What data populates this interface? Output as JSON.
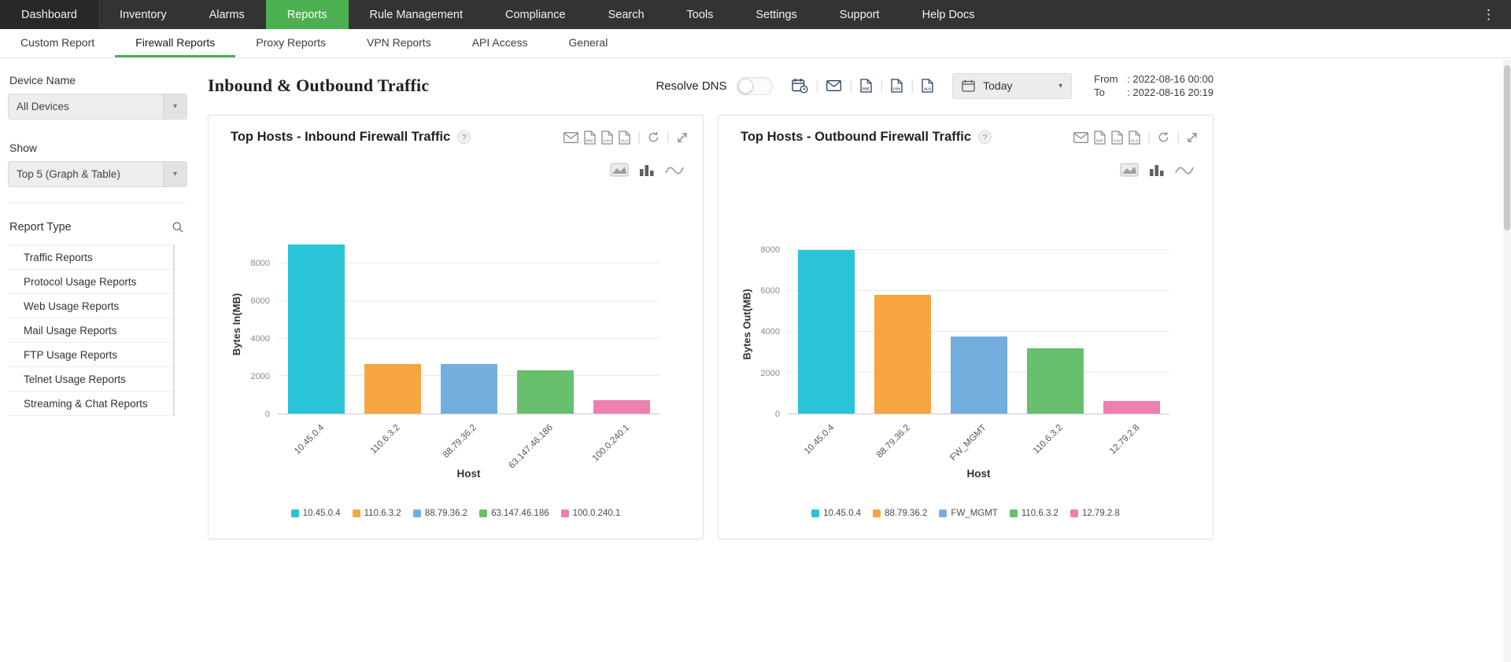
{
  "topnav": {
    "items": [
      {
        "label": "Dashboard"
      },
      {
        "label": "Inventory"
      },
      {
        "label": "Alarms"
      },
      {
        "label": "Reports",
        "active": true
      },
      {
        "label": "Rule Management"
      },
      {
        "label": "Compliance"
      },
      {
        "label": "Search"
      },
      {
        "label": "Tools"
      },
      {
        "label": "Settings"
      },
      {
        "label": "Support"
      },
      {
        "label": "Help Docs"
      }
    ]
  },
  "subnav": {
    "items": [
      {
        "label": "Custom Report"
      },
      {
        "label": "Firewall Reports",
        "active": true
      },
      {
        "label": "Proxy Reports"
      },
      {
        "label": "VPN Reports"
      },
      {
        "label": "API Access"
      },
      {
        "label": "General"
      }
    ]
  },
  "sidebar": {
    "device_name_label": "Device Name",
    "device_selected": "All Devices",
    "show_label": "Show",
    "show_selected": "Top 5 (Graph & Table)",
    "report_type_label": "Report Type",
    "report_types": [
      "Traffic Reports",
      "Protocol Usage Reports",
      "Web Usage Reports",
      "Mail Usage Reports",
      "FTP Usage Reports",
      "Telnet Usage Reports",
      "Streaming & Chat Reports"
    ]
  },
  "header": {
    "title": "Inbound & Outbound Traffic",
    "resolve_dns_label": "Resolve DNS",
    "resolve_dns_enabled": false,
    "period_selected": "Today",
    "from_label": "From",
    "from_value": ": 2022-08-16 00:00",
    "to_label": "To",
    "to_value": ": 2022-08-16 20:19"
  },
  "toolbar": {
    "icons": [
      "schedule-report-icon",
      "divider",
      "email-icon",
      "divider",
      "pdf-export-icon",
      "divider",
      "csv-export-icon",
      "divider",
      "xls-export-icon"
    ]
  },
  "card_icons": [
    "email-icon",
    "pdf-icon",
    "csv-icon",
    "xls-icon",
    "divider",
    "refresh-icon",
    "divider",
    "detach-icon"
  ],
  "chart_type_icons": [
    "chart-type-area-icon",
    "chart-type-bar-icon",
    "chart-type-line-icon"
  ],
  "colors": {
    "accent_green": "#4caf50",
    "series": [
      "#29c4d8",
      "#f7a541",
      "#74aede",
      "#68bf6e",
      "#ef7fae"
    ]
  },
  "chart_data": [
    {
      "type": "bar",
      "title": "Top Hosts - Inbound Firewall Traffic",
      "categories": [
        "10.45.0.4",
        "110.6.3.2",
        "88.79.36.2",
        "63.147.46.186",
        "100.0.240.1"
      ],
      "values": [
        9000,
        2650,
        2650,
        2300,
        700
      ],
      "colors": [
        "#29c4d8",
        "#f7a541",
        "#74aede",
        "#68bf6e",
        "#ef7fae"
      ],
      "xlabel": "Host",
      "ylabel": "Bytes In(MB)",
      "yticks": [
        0,
        2000,
        4000,
        6000,
        8000
      ],
      "ylim": [
        0,
        9600
      ],
      "grid": true,
      "legend_position": "bottom"
    },
    {
      "type": "bar",
      "title": "Top Hosts - Outbound Firewall Traffic",
      "categories": [
        "10.45.0.4",
        "88.79.36.2",
        "FW_MGMT",
        "110.6.3.2",
        "12.79.2.8"
      ],
      "values": [
        8000,
        5800,
        3750,
        3200,
        600
      ],
      "colors": [
        "#29c4d8",
        "#f7a541",
        "#74aede",
        "#68bf6e",
        "#ef7fae"
      ],
      "xlabel": "Host",
      "ylabel": "Bytes Out(MB)",
      "yticks": [
        0,
        2000,
        4000,
        6000,
        8000
      ],
      "ylim": [
        0,
        8800
      ],
      "grid": true,
      "legend_position": "bottom"
    }
  ]
}
